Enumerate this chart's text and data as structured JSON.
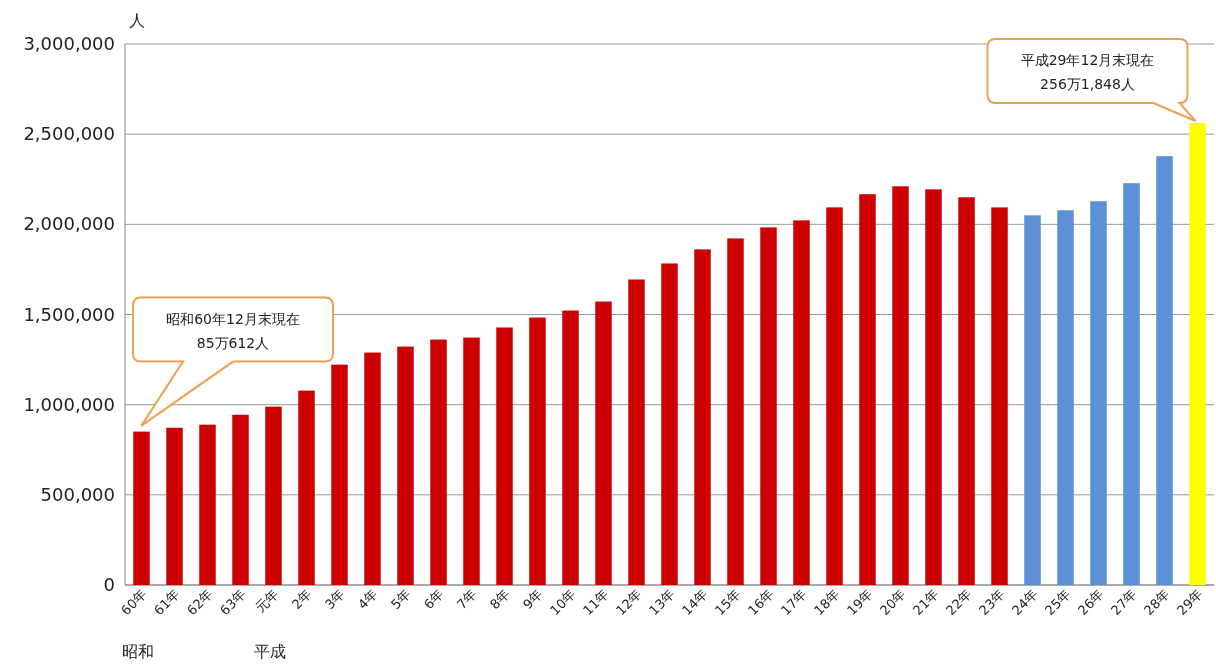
{
  "chart_data": {
    "type": "bar",
    "ylabel": "人",
    "categories": [
      "60年",
      "61年",
      "62年",
      "63年",
      "元年",
      "2年",
      "3年",
      "4年",
      "5年",
      "6年",
      "7年",
      "8年",
      "9年",
      "10年",
      "11年",
      "12年",
      "13年",
      "14年",
      "15年",
      "16年",
      "17年",
      "18年",
      "19年",
      "20年",
      "21年",
      "22年",
      "23年",
      "24年",
      "25年",
      "26年",
      "27年",
      "28年",
      "29年"
    ],
    "values": [
      850612,
      872000,
      889000,
      944000,
      989000,
      1078000,
      1222000,
      1289000,
      1322000,
      1361000,
      1372000,
      1428000,
      1483000,
      1522000,
      1572000,
      1694000,
      1783000,
      1861000,
      1922000,
      1983000,
      2022000,
      2094000,
      2167000,
      2211000,
      2194000,
      2150000,
      2094000,
      2050000,
      2078000,
      2128000,
      2228000,
      2378000,
      2561848
    ],
    "colors": [
      "#cc0000",
      "#cc0000",
      "#cc0000",
      "#cc0000",
      "#cc0000",
      "#cc0000",
      "#cc0000",
      "#cc0000",
      "#cc0000",
      "#cc0000",
      "#cc0000",
      "#cc0000",
      "#cc0000",
      "#cc0000",
      "#cc0000",
      "#cc0000",
      "#cc0000",
      "#cc0000",
      "#cc0000",
      "#cc0000",
      "#cc0000",
      "#cc0000",
      "#cc0000",
      "#cc0000",
      "#cc0000",
      "#cc0000",
      "#cc0000",
      "#5b8fd6",
      "#5b8fd6",
      "#5b8fd6",
      "#5b8fd6",
      "#5b8fd6",
      "#ffff00"
    ],
    "ylim": [
      0,
      3000000
    ],
    "yticks": [
      {
        "value": 0,
        "label": "0"
      },
      {
        "value": 500000,
        "label": "500,000"
      },
      {
        "value": 1000000,
        "label": "1,000,000"
      },
      {
        "value": 1500000,
        "label": "1,500,000"
      },
      {
        "value": 2000000,
        "label": "2,000,000"
      },
      {
        "value": 2500000,
        "label": "2,500,000"
      },
      {
        "value": 3000000,
        "label": "3,000,000"
      }
    ],
    "grid": "y",
    "annotations": [
      "昭和60年12月末現在\n85万612人",
      "平成29年12月末現在\n256万1,848人",
      "昭和",
      "平成"
    ]
  }
}
